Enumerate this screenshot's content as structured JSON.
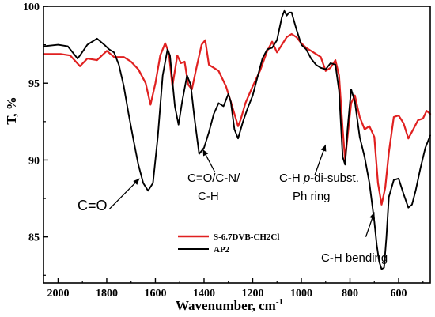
{
  "chart_data": {
    "type": "line",
    "xlabel": "Wavenumber, cm",
    "xlabel_sup": "-1",
    "ylabel": "T, %",
    "xlim": [
      2060,
      470
    ],
    "ylim": [
      82,
      100
    ],
    "x_ticks": [
      "2000",
      "1800",
      "1600",
      "1400",
      "1200",
      "1000",
      "800",
      "600"
    ],
    "y_ticks": [
      "100",
      "95",
      "90",
      "85"
    ],
    "legend": {
      "position": "bottom-left"
    },
    "series": [
      {
        "name": "S-6.7DVB-CH2Cl",
        "color": "#e02020",
        "x": [
          2060,
          1990,
          1950,
          1910,
          1880,
          1840,
          1800,
          1770,
          1730,
          1700,
          1670,
          1640,
          1620,
          1600,
          1580,
          1560,
          1545,
          1530,
          1510,
          1495,
          1480,
          1465,
          1450,
          1430,
          1410,
          1395,
          1380,
          1360,
          1340,
          1310,
          1290,
          1275,
          1260,
          1250,
          1230,
          1200,
          1170,
          1140,
          1120,
          1100,
          1080,
          1060,
          1040,
          1020,
          1000,
          980,
          950,
          920,
          900,
          880,
          860,
          845,
          830,
          820,
          810,
          795,
          780,
          760,
          740,
          720,
          700,
          685,
          670,
          655,
          640,
          620,
          600,
          580,
          560,
          540,
          520,
          500,
          485,
          470
        ],
        "values": [
          96.9,
          96.9,
          96.8,
          96.1,
          96.6,
          96.5,
          97.1,
          96.7,
          96.7,
          96.4,
          95.9,
          95.0,
          93.6,
          95.0,
          96.8,
          97.6,
          97.0,
          94.8,
          96.8,
          96.3,
          96.4,
          94.9,
          94.6,
          96.1,
          97.5,
          97.8,
          96.2,
          96.0,
          95.8,
          94.8,
          93.8,
          93.0,
          92.2,
          92.6,
          93.7,
          94.8,
          95.8,
          97.1,
          97.7,
          97.0,
          97.5,
          98.0,
          98.2,
          98.0,
          97.6,
          97.3,
          97.0,
          96.7,
          95.8,
          96.0,
          96.5,
          95.5,
          92.0,
          90.0,
          91.5,
          93.7,
          94.2,
          92.8,
          92.0,
          92.2,
          91.5,
          88.5,
          87.1,
          88.2,
          90.5,
          92.8,
          92.9,
          92.4,
          91.4,
          92.0,
          92.6,
          92.7,
          93.2,
          93.0
        ]
      },
      {
        "name": "AP2",
        "color": "#000000",
        "x": [
          2060,
          2000,
          1960,
          1920,
          1910,
          1880,
          1840,
          1810,
          1790,
          1770,
          1750,
          1730,
          1710,
          1690,
          1670,
          1650,
          1630,
          1610,
          1590,
          1570,
          1550,
          1540,
          1520,
          1505,
          1490,
          1470,
          1455,
          1440,
          1420,
          1400,
          1380,
          1360,
          1340,
          1320,
          1300,
          1290,
          1275,
          1260,
          1240,
          1220,
          1200,
          1180,
          1160,
          1140,
          1120,
          1100,
          1080,
          1070,
          1060,
          1050,
          1040,
          1020,
          1000,
          980,
          960,
          940,
          920,
          900,
          880,
          860,
          845,
          830,
          820,
          810,
          795,
          780,
          760,
          740,
          720,
          700,
          690,
          680,
          670,
          660,
          650,
          640,
          620,
          600,
          580,
          560,
          545,
          530,
          510,
          490,
          470
        ],
        "values": [
          97.4,
          97.5,
          97.4,
          96.6,
          96.8,
          97.5,
          97.9,
          97.5,
          97.2,
          97.0,
          96.2,
          94.8,
          93.0,
          91.3,
          89.7,
          88.5,
          88.0,
          88.5,
          91.5,
          95.5,
          97.2,
          96.8,
          93.5,
          92.3,
          93.8,
          95.5,
          94.9,
          92.8,
          90.4,
          90.8,
          91.8,
          93.0,
          93.7,
          93.5,
          94.3,
          93.8,
          92.0,
          91.4,
          92.5,
          93.4,
          94.2,
          95.4,
          96.6,
          97.2,
          97.3,
          97.8,
          99.3,
          99.7,
          99.4,
          99.6,
          99.6,
          98.5,
          97.5,
          97.2,
          96.6,
          96.2,
          96.0,
          95.9,
          96.3,
          96.2,
          94.5,
          90.2,
          89.7,
          92.0,
          94.6,
          93.8,
          91.5,
          90.2,
          88.5,
          86.0,
          84.5,
          83.4,
          82.9,
          83.0,
          85.0,
          87.6,
          88.7,
          88.8,
          87.8,
          86.9,
          87.1,
          88.0,
          89.5,
          90.8,
          91.6
        ]
      }
    ],
    "annotations": [
      {
        "text": "C=O",
        "arrow_from": [
          1790,
          86.8
        ],
        "arrow_to": [
          1665,
          88.8
        ]
      },
      {
        "text": "C=O/C-N/",
        "arrow_from": [
          1355,
          89.2
        ],
        "arrow_to": [
          1405,
          90.7
        ]
      },
      {
        "text": "C-H",
        "arrow_from": null,
        "arrow_to": null
      },
      {
        "text": "C-H p-di-subst.",
        "arrow_from": [
          945,
          89.0
        ],
        "arrow_to": [
          900,
          91.0
        ]
      },
      {
        "text": "Ph ring",
        "arrow_from": null,
        "arrow_to": null
      },
      {
        "text": "C-H bending",
        "arrow_from": [
          735,
          85.0
        ],
        "arrow_to": [
          700,
          86.6
        ]
      }
    ]
  }
}
